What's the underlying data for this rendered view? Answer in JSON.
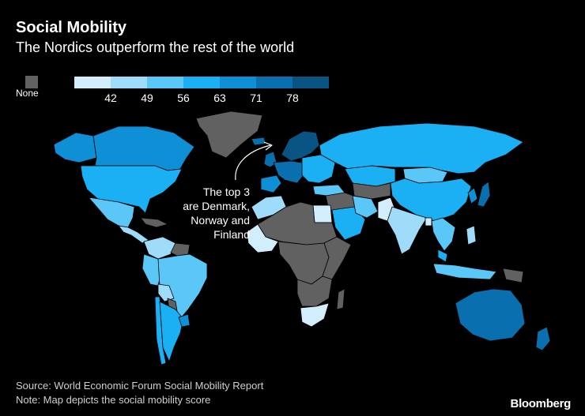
{
  "title": "Social Mobility",
  "subtitle": "The Nordics outperform the rest of the world",
  "legend": {
    "none_label": "None",
    "none_color": "#616161",
    "bins": [
      {
        "color": "#d2eefd"
      },
      {
        "color": "#9fdcfa"
      },
      {
        "color": "#5ac7f6"
      },
      {
        "color": "#1ab0f3"
      },
      {
        "color": "#0f8fd6"
      },
      {
        "color": "#0a6fae"
      },
      {
        "color": "#0a5483"
      }
    ],
    "ticks": [
      "42",
      "49",
      "56",
      "63",
      "71",
      "78"
    ]
  },
  "annotation": {
    "lines": [
      "The top 3",
      "are Denmark,",
      "Norway and",
      "Finland"
    ]
  },
  "source": "Source: World Economic Forum Social Mobility Report",
  "note": "Note: Map depicts the social mobility score",
  "brand": "Bloomberg",
  "map_regions": [
    {
      "name": "greenland",
      "bin": -1
    },
    {
      "name": "canada",
      "bin": 4
    },
    {
      "name": "alaska",
      "bin": 4
    },
    {
      "name": "usa",
      "bin": 3
    },
    {
      "name": "mexico",
      "bin": 2
    },
    {
      "name": "central-america",
      "bin": 1
    },
    {
      "name": "caribbean",
      "bin": -1
    },
    {
      "name": "colombia-venezuela",
      "bin": 1
    },
    {
      "name": "guianas",
      "bin": -1
    },
    {
      "name": "brazil",
      "bin": 2
    },
    {
      "name": "peru-ecuador",
      "bin": 2
    },
    {
      "name": "bolivia",
      "bin": 1
    },
    {
      "name": "paraguay",
      "bin": -1
    },
    {
      "name": "chile",
      "bin": 3
    },
    {
      "name": "argentina",
      "bin": 3
    },
    {
      "name": "uruguay",
      "bin": 4
    },
    {
      "name": "iceland",
      "bin": 5
    },
    {
      "name": "uk",
      "bin": 5
    },
    {
      "name": "nordics",
      "bin": 6
    },
    {
      "name": "western-europe",
      "bin": 5
    },
    {
      "name": "iberia",
      "bin": 4
    },
    {
      "name": "eastern-europe",
      "bin": 3
    },
    {
      "name": "russia",
      "bin": 3
    },
    {
      "name": "turkey",
      "bin": 2
    },
    {
      "name": "kazakhstan",
      "bin": 3
    },
    {
      "name": "central-asia",
      "bin": -1
    },
    {
      "name": "mongolia",
      "bin": 2
    },
    {
      "name": "china",
      "bin": 3
    },
    {
      "name": "korea",
      "bin": 4
    },
    {
      "name": "japan",
      "bin": 5
    },
    {
      "name": "middle-east",
      "bin": -1
    },
    {
      "name": "saudi-arabia",
      "bin": 3
    },
    {
      "name": "iran",
      "bin": 2
    },
    {
      "name": "pakistan",
      "bin": 0
    },
    {
      "name": "india",
      "bin": 1
    },
    {
      "name": "bangladesh",
      "bin": 0
    },
    {
      "name": "southeast-asia",
      "bin": 2
    },
    {
      "name": "philippines",
      "bin": 1
    },
    {
      "name": "indonesia",
      "bin": 2
    },
    {
      "name": "malaysia",
      "bin": 3
    },
    {
      "name": "papua",
      "bin": -1
    },
    {
      "name": "australia",
      "bin": 5
    },
    {
      "name": "new-zealand",
      "bin": 5
    },
    {
      "name": "north-africa",
      "bin": 1
    },
    {
      "name": "egypt",
      "bin": 0
    },
    {
      "name": "sahara",
      "bin": -1
    },
    {
      "name": "west-africa",
      "bin": 0
    },
    {
      "name": "central-africa",
      "bin": -1
    },
    {
      "name": "east-africa",
      "bin": -1
    },
    {
      "name": "southern-africa",
      "bin": -1
    },
    {
      "name": "south-africa",
      "bin": 0
    },
    {
      "name": "madagascar",
      "bin": -1
    }
  ]
}
